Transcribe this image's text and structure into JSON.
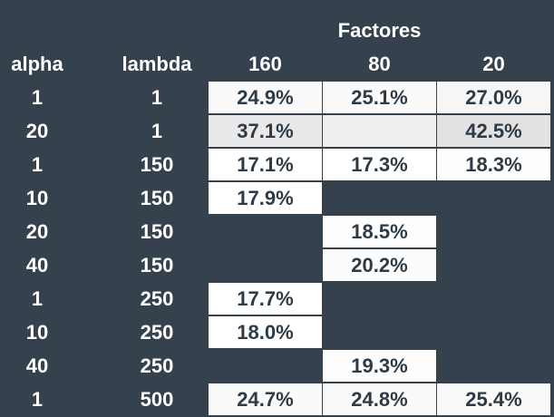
{
  "header": {
    "group_label": "Factores",
    "col_alpha": "alpha",
    "col_lambda": "lambda",
    "factors": [
      "160",
      "80",
      "20"
    ]
  },
  "rows": [
    {
      "alpha": "1",
      "lambda": "1",
      "cells": [
        {
          "v": "24.9%",
          "bg": "#fafafa"
        },
        {
          "v": "25.1%",
          "bg": "#fafafa"
        },
        {
          "v": "27.0%",
          "bg": "#f6f6f6"
        }
      ]
    },
    {
      "alpha": "20",
      "lambda": "1",
      "cells": [
        {
          "v": "37.1%",
          "bg": "#e9e9e9"
        },
        {
          "v": "",
          "bg": "#efefef"
        },
        {
          "v": "42.5%",
          "bg": "#e2e2e2"
        }
      ]
    },
    {
      "alpha": "1",
      "lambda": "150",
      "cells": [
        {
          "v": "17.1%",
          "bg": "#ffffff"
        },
        {
          "v": "17.3%",
          "bg": "#ffffff"
        },
        {
          "v": "18.3%",
          "bg": "#fefefe"
        }
      ]
    },
    {
      "alpha": "10",
      "lambda": "150",
      "cells": [
        {
          "v": "17.9%",
          "bg": "#ffffff"
        },
        {
          "v": "",
          "bg": ""
        },
        {
          "v": "",
          "bg": ""
        }
      ]
    },
    {
      "alpha": "20",
      "lambda": "150",
      "cells": [
        {
          "v": "",
          "bg": ""
        },
        {
          "v": "18.5%",
          "bg": "#fefefe"
        },
        {
          "v": "",
          "bg": ""
        }
      ]
    },
    {
      "alpha": "40",
      "lambda": "150",
      "cells": [
        {
          "v": "",
          "bg": ""
        },
        {
          "v": "20.2%",
          "bg": "#fcfcfc"
        },
        {
          "v": "",
          "bg": ""
        }
      ]
    },
    {
      "alpha": "1",
      "lambda": "250",
      "cells": [
        {
          "v": "17.7%",
          "bg": "#ffffff"
        },
        {
          "v": "",
          "bg": ""
        },
        {
          "v": "",
          "bg": ""
        }
      ]
    },
    {
      "alpha": "10",
      "lambda": "250",
      "cells": [
        {
          "v": "18.0%",
          "bg": "#ffffff"
        },
        {
          "v": "",
          "bg": ""
        },
        {
          "v": "",
          "bg": ""
        }
      ]
    },
    {
      "alpha": "40",
      "lambda": "250",
      "cells": [
        {
          "v": "",
          "bg": ""
        },
        {
          "v": "19.3%",
          "bg": "#fdfdfd"
        },
        {
          "v": "",
          "bg": ""
        }
      ]
    },
    {
      "alpha": "1",
      "lambda": "500",
      "cells": [
        {
          "v": "24.7%",
          "bg": "#fafafa"
        },
        {
          "v": "24.8%",
          "bg": "#fafafa"
        },
        {
          "v": "25.4%",
          "bg": "#f9f9f9"
        }
      ]
    }
  ]
}
